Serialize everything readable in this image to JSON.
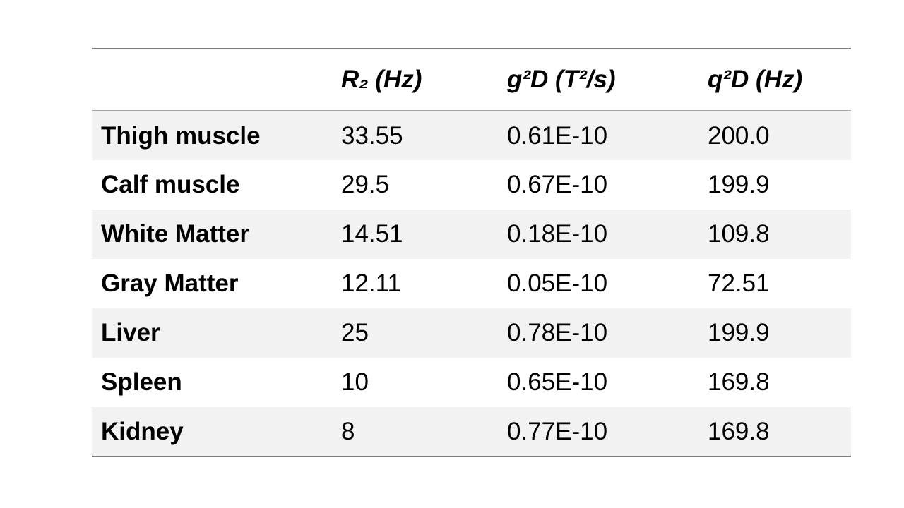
{
  "theme": {
    "banded_row_color": "#f2f2f2",
    "outer_border_color": "#7f7f7f",
    "header_rule_color": "#a3a3a3",
    "text_color": "#000000",
    "background_color": "#ffffff"
  },
  "table": {
    "headers": [
      "",
      "R₂ (Hz)",
      "g²D (T²/s)",
      "q²D (Hz)"
    ],
    "rows": [
      {
        "tissue": "Thigh muscle",
        "r2_hz": "33.55",
        "g2d_t2s": "0.61E-10",
        "q2d_hz": "200.0"
      },
      {
        "tissue": "Calf muscle",
        "r2_hz": "29.5",
        "g2d_t2s": "0.67E-10",
        "q2d_hz": "199.9"
      },
      {
        "tissue": "White Matter",
        "r2_hz": "14.51",
        "g2d_t2s": "0.18E-10",
        "q2d_hz": "109.8"
      },
      {
        "tissue": "Gray Matter",
        "r2_hz": "12.11",
        "g2d_t2s": "0.05E-10",
        "q2d_hz": "72.51"
      },
      {
        "tissue": "Liver",
        "r2_hz": "25",
        "g2d_t2s": "0.78E-10",
        "q2d_hz": "199.9"
      },
      {
        "tissue": "Spleen",
        "r2_hz": "10",
        "g2d_t2s": "0.65E-10",
        "q2d_hz": "169.8"
      },
      {
        "tissue": "Kidney",
        "r2_hz": "8",
        "g2d_t2s": "0.77E-10",
        "q2d_hz": "169.8"
      }
    ]
  }
}
